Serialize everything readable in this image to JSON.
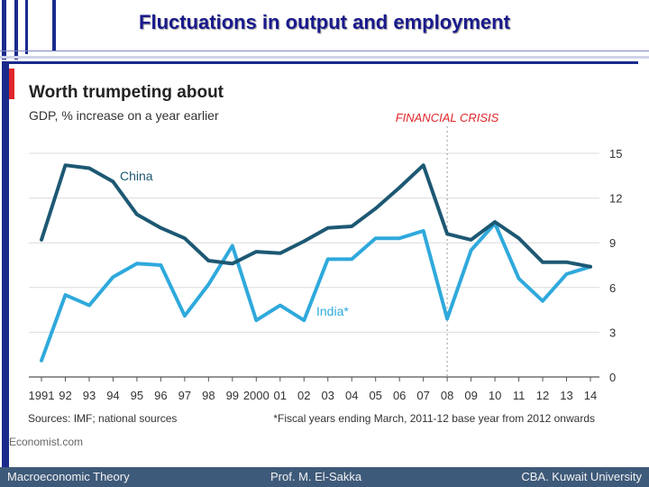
{
  "slide_title": "Fluctuations in output and employment",
  "footer": {
    "left": "Macroeconomic Theory",
    "center": "Prof. M. El-Sakka",
    "right": "CBA. Kuwait University"
  },
  "colors": {
    "china": "#1d5873",
    "india": "#2fa9dc",
    "crisis": "#e0262b",
    "accent_bar": "#e0262b",
    "frame": "#1a2a8c"
  },
  "chart_data": {
    "type": "line",
    "title": "Worth trumpeting about",
    "subtitle": "GDP, % increase on a year earlier",
    "annotation": "FINANCIAL CRISIS",
    "annotation_x": "08",
    "categories": [
      "1991",
      "92",
      "93",
      "94",
      "95",
      "96",
      "97",
      "98",
      "99",
      "2000",
      "01",
      "02",
      "03",
      "04",
      "05",
      "06",
      "07",
      "08",
      "09",
      "10",
      "11",
      "12",
      "13",
      "14"
    ],
    "series": [
      {
        "name": "China",
        "color": "#1d5873",
        "values": [
          9.2,
          14.2,
          14.0,
          13.1,
          10.9,
          10.0,
          9.3,
          7.8,
          7.6,
          8.4,
          8.3,
          9.1,
          10.0,
          10.1,
          11.3,
          12.7,
          14.2,
          9.6,
          9.2,
          10.4,
          9.3,
          7.7,
          7.7,
          7.4
        ]
      },
      {
        "name": "India*",
        "color": "#2fa9dc",
        "values": [
          1.1,
          5.5,
          4.8,
          6.7,
          7.6,
          7.5,
          4.1,
          6.2,
          8.8,
          3.8,
          4.8,
          3.8,
          7.9,
          7.9,
          9.3,
          9.3,
          9.8,
          3.9,
          8.5,
          10.3,
          6.6,
          5.1,
          6.9,
          7.4
        ]
      }
    ],
    "yticks": [
      "15",
      "12",
      "9",
      "6",
      "3",
      "0"
    ],
    "ylim": [
      0,
      15
    ],
    "grid": true,
    "sources": "Sources: IMF; national sources",
    "footnote": "*Fiscal years ending March, 2011-12 base year from 2012 onwards",
    "credit": "Economist.com"
  }
}
